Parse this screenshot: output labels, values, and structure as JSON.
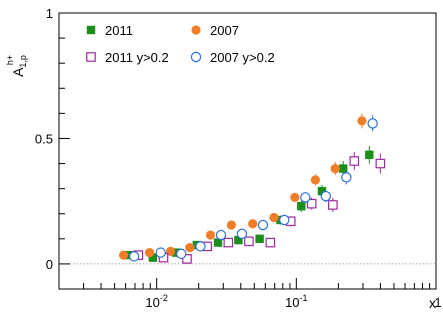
{
  "chart_data": {
    "type": "scatter",
    "title": "",
    "xlabel": "x",
    "ylabel": {
      "base": "A",
      "sub": "1,p",
      "sup": "h+"
    },
    "xscale": "log",
    "xlim": [
      0.002,
      1
    ],
    "ylim": [
      -0.1,
      1
    ],
    "grid": false,
    "zero_line": true,
    "legend_placement": "top-left",
    "x_tick_labels": [
      {
        "x": 0.01,
        "mantissa": "10",
        "exponent": "-2"
      },
      {
        "x": 0.1,
        "mantissa": "10",
        "exponent": "-1"
      },
      {
        "x": 1,
        "mantissa": "1",
        "exponent": ""
      }
    ],
    "y_ticks": [
      {
        "value": 0,
        "label": "0"
      },
      {
        "value": 0.5,
        "label": "0.5"
      },
      {
        "value": 1,
        "label": "1"
      }
    ],
    "series": [
      {
        "name": "2011",
        "marker": "square-filled",
        "color": "#1a8f1a",
        "x": [
          0.0063,
          0.0094,
          0.0138,
          0.0194,
          0.0275,
          0.0385,
          0.0546,
          0.0769,
          0.1086,
          0.1526,
          0.2167,
          0.3331
        ],
        "y": [
          0.035,
          0.025,
          0.045,
          0.075,
          0.085,
          0.095,
          0.1,
          0.175,
          0.23,
          0.29,
          0.38,
          0.435
        ],
        "err": [
          0.01,
          0.01,
          0.01,
          0.012,
          0.012,
          0.014,
          0.015,
          0.018,
          0.022,
          0.025,
          0.03,
          0.035
        ]
      },
      {
        "name": "2007",
        "marker": "circle-filled",
        "color": "#f07d28",
        "x": [
          0.0058,
          0.0089,
          0.0126,
          0.0173,
          0.0243,
          0.0343,
          0.0487,
          0.0692,
          0.0976,
          0.137,
          0.19,
          0.295
        ],
        "y": [
          0.035,
          0.045,
          0.05,
          0.065,
          0.115,
          0.155,
          0.16,
          0.185,
          0.265,
          0.335,
          0.38,
          0.57
        ],
        "err": [
          0.008,
          0.008,
          0.009,
          0.01,
          0.011,
          0.012,
          0.014,
          0.016,
          0.019,
          0.022,
          0.026,
          0.03
        ]
      },
      {
        "name": "2011 y>0.2",
        "marker": "square-open",
        "color": "#a026a0",
        "x": [
          0.0074,
          0.0112,
          0.0165,
          0.023,
          0.0326,
          0.0458,
          0.0652,
          0.0912,
          0.1288,
          0.1826,
          0.26,
          0.3996
        ],
        "y": [
          0.035,
          0.025,
          0.02,
          0.07,
          0.085,
          0.09,
          0.085,
          0.17,
          0.24,
          0.235,
          0.41,
          0.4
        ],
        "err": [
          0.01,
          0.01,
          0.01,
          0.012,
          0.013,
          0.014,
          0.016,
          0.02,
          0.024,
          0.028,
          0.035,
          0.04
        ]
      },
      {
        "name": "2007 y>0.2",
        "marker": "circle-open",
        "color": "#2a6fdb",
        "x": [
          0.0069,
          0.0107,
          0.015,
          0.0206,
          0.0289,
          0.0408,
          0.0577,
          0.082,
          0.116,
          0.1626,
          0.228,
          0.352
        ],
        "y": [
          0.03,
          0.045,
          0.04,
          0.07,
          0.115,
          0.12,
          0.155,
          0.175,
          0.265,
          0.27,
          0.345,
          0.56
        ],
        "err": [
          0.008,
          0.009,
          0.01,
          0.011,
          0.012,
          0.014,
          0.015,
          0.018,
          0.021,
          0.024,
          0.028,
          0.032
        ]
      }
    ]
  }
}
